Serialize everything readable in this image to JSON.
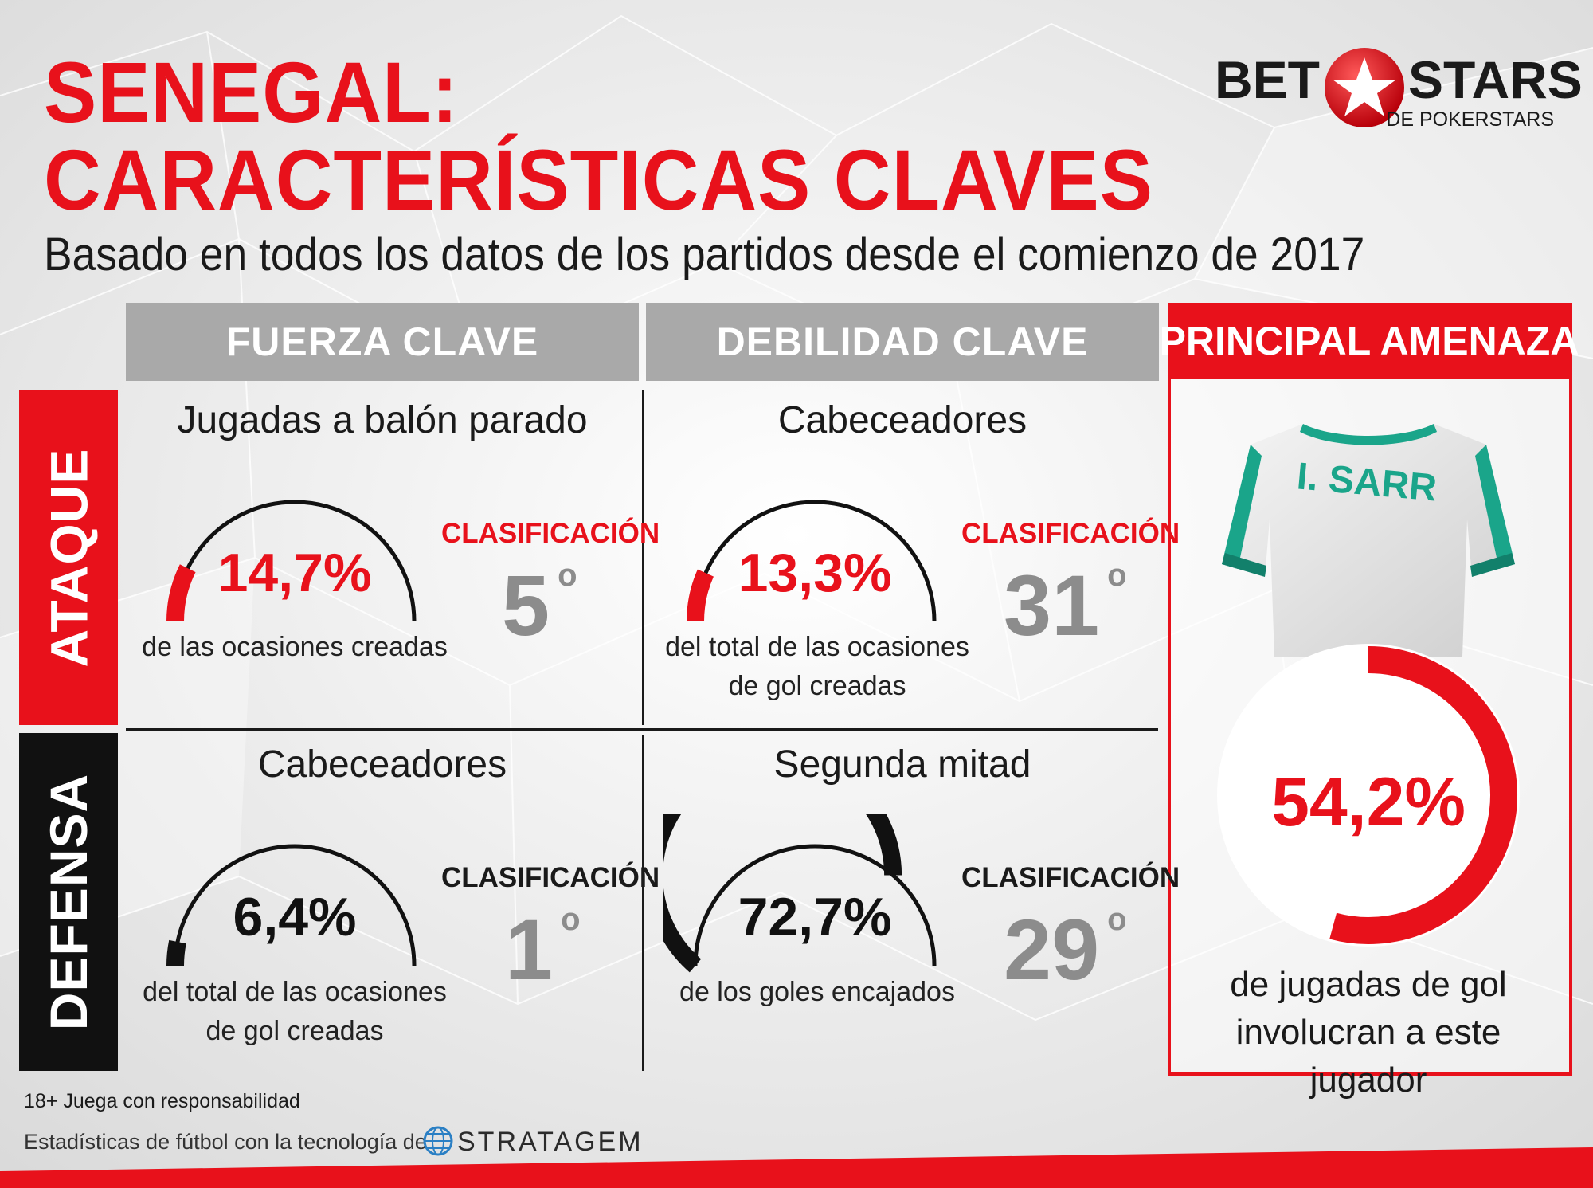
{
  "header": {
    "title_line1": "SENEGAL:",
    "title_line2": "CARACTERÍSTICAS CLAVES",
    "subtitle": "Basado en todos los datos de los partidos desde el comienzo de 2017"
  },
  "logo": {
    "left": "BET",
    "right": "STARS",
    "sub": "DE POKERSTARS"
  },
  "columns": {
    "strength": "FUERZA CLAVE",
    "weakness": "DEBILIDAD CLAVE",
    "threat": "PRINCIPAL AMENAZA"
  },
  "rows": {
    "attack": "ATAQUE",
    "defense": "DEFENSA"
  },
  "cells": {
    "attack_strength": {
      "title": "Jugadas a balón parado",
      "value": "14,7%",
      "fraction": 0.147,
      "desc": "de las ocasiones creadas",
      "rank_label": "CLASIFICACIÓN",
      "rank": "5",
      "ordinal": "o"
    },
    "attack_weakness": {
      "title": "Cabeceadores",
      "value": "13,3%",
      "fraction": 0.133,
      "desc": "del total de las ocasiones de gol creadas",
      "rank_label": "CLASIFICACIÓN",
      "rank": "31",
      "ordinal": "o"
    },
    "defense_strength": {
      "title": "Cabeceadores",
      "value": "6,4%",
      "fraction": 0.064,
      "desc": "del total de las ocasiones de gol creadas",
      "rank_label": "CLASIFICACIÓN",
      "rank": "1",
      "ordinal": "o"
    },
    "defense_weakness": {
      "title": "Segunda mitad",
      "value": "72,7%",
      "fraction": 0.727,
      "desc": "de los goles encajados",
      "rank_label": "CLASIFICACIÓN",
      "rank": "29",
      "ordinal": "o"
    }
  },
  "threat": {
    "player": "I. SARR",
    "value": "54,2%",
    "fraction": 0.542,
    "desc": "de jugadas de gol involucran a este jugador"
  },
  "footer": {
    "responsible": "18+ Juega con responsabilidad",
    "powered": "Estadísticas de fútbol con la tecnología de",
    "brand": "STRATAGEM"
  },
  "colors": {
    "red": "#e8111b",
    "black": "#1a1a1a",
    "grey": "#a9a9a9",
    "rank_grey": "#8c8c8c"
  }
}
